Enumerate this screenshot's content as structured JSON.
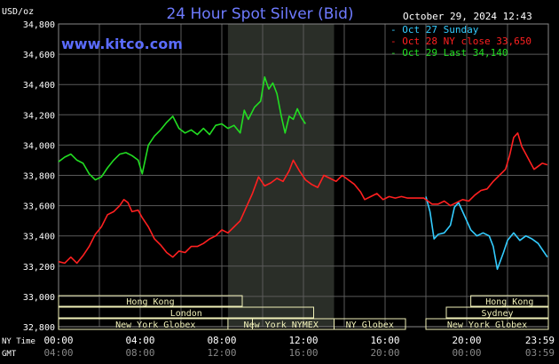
{
  "chart_data": {
    "type": "line",
    "title": "24 Hour Spot Silver (Bid)",
    "unit_label": "USD/oz",
    "timestamp": "October 29, 2024 12:43",
    "watermark": "www.kitco.com",
    "ylim": [
      32800,
      34800
    ],
    "y_ticks": [
      "34,800",
      "34,600",
      "34,400",
      "34,200",
      "34,000",
      "33,800",
      "33,600",
      "33,400",
      "33,200",
      "33,000",
      "32,800"
    ],
    "y_tick_values": [
      34800,
      34600,
      34400,
      34200,
      34000,
      33800,
      33600,
      33400,
      33200,
      33000,
      32800
    ],
    "x_range_hours": [
      0,
      24
    ],
    "x_ticks_ny": [
      "00:00",
      "04:00",
      "08:00",
      "12:00",
      "16:00",
      "20:00",
      "23:59"
    ],
    "x_ticks_gmt": [
      "04:00",
      "08:00",
      "12:00",
      "16:00",
      "20:00",
      "00:00",
      "03:59"
    ],
    "x_tick_hours": [
      0,
      4,
      8,
      12,
      16,
      20,
      24
    ],
    "x_row_label_ny": "NY Time",
    "x_row_label_gmt": "GMT",
    "legend_position": "top-right",
    "grid": true,
    "series": [
      {
        "name": "Oct 27 Sunday",
        "color": "#33ccff",
        "points": [
          [
            18.0,
            33660
          ],
          [
            18.2,
            33560
          ],
          [
            18.4,
            33380
          ],
          [
            18.6,
            33410
          ],
          [
            18.9,
            33420
          ],
          [
            19.2,
            33470
          ],
          [
            19.4,
            33590
          ],
          [
            19.6,
            33620
          ],
          [
            19.9,
            33530
          ],
          [
            20.2,
            33440
          ],
          [
            20.5,
            33400
          ],
          [
            20.8,
            33420
          ],
          [
            21.1,
            33400
          ],
          [
            21.3,
            33330
          ],
          [
            21.5,
            33180
          ],
          [
            21.8,
            33290
          ],
          [
            22.0,
            33370
          ],
          [
            22.3,
            33420
          ],
          [
            22.6,
            33370
          ],
          [
            22.9,
            33400
          ],
          [
            23.2,
            33380
          ],
          [
            23.5,
            33350
          ],
          [
            23.7,
            33310
          ],
          [
            23.95,
            33260
          ]
        ]
      },
      {
        "name": "Oct 28 NY close 33,650",
        "color": "#ff2020",
        "points": [
          [
            0.0,
            33230
          ],
          [
            0.3,
            33220
          ],
          [
            0.6,
            33260
          ],
          [
            0.9,
            33220
          ],
          [
            1.2,
            33270
          ],
          [
            1.5,
            33330
          ],
          [
            1.8,
            33410
          ],
          [
            2.1,
            33460
          ],
          [
            2.4,
            33540
          ],
          [
            2.7,
            33560
          ],
          [
            3.0,
            33600
          ],
          [
            3.2,
            33640
          ],
          [
            3.4,
            33620
          ],
          [
            3.6,
            33560
          ],
          [
            3.9,
            33570
          ],
          [
            4.1,
            33520
          ],
          [
            4.4,
            33460
          ],
          [
            4.7,
            33380
          ],
          [
            5.0,
            33340
          ],
          [
            5.3,
            33290
          ],
          [
            5.6,
            33260
          ],
          [
            5.9,
            33300
          ],
          [
            6.2,
            33290
          ],
          [
            6.5,
            33330
          ],
          [
            6.8,
            33330
          ],
          [
            7.1,
            33350
          ],
          [
            7.4,
            33380
          ],
          [
            7.7,
            33400
          ],
          [
            8.0,
            33440
          ],
          [
            8.3,
            33420
          ],
          [
            8.6,
            33460
          ],
          [
            8.9,
            33500
          ],
          [
            9.2,
            33590
          ],
          [
            9.5,
            33680
          ],
          [
            9.8,
            33790
          ],
          [
            10.1,
            33730
          ],
          [
            10.4,
            33750
          ],
          [
            10.7,
            33780
          ],
          [
            11.0,
            33760
          ],
          [
            11.3,
            33830
          ],
          [
            11.5,
            33900
          ],
          [
            11.8,
            33830
          ],
          [
            12.1,
            33770
          ],
          [
            12.4,
            33740
          ],
          [
            12.7,
            33720
          ],
          [
            13.0,
            33800
          ],
          [
            13.3,
            33780
          ],
          [
            13.6,
            33760
          ],
          [
            13.9,
            33800
          ],
          [
            14.2,
            33770
          ],
          [
            14.5,
            33740
          ],
          [
            14.8,
            33690
          ],
          [
            15.0,
            33640
          ],
          [
            15.3,
            33660
          ],
          [
            15.6,
            33680
          ],
          [
            15.9,
            33640
          ],
          [
            16.2,
            33660
          ],
          [
            16.5,
            33650
          ],
          [
            16.8,
            33660
          ],
          [
            17.1,
            33650
          ],
          [
            17.5,
            33650
          ],
          [
            17.9,
            33650
          ],
          [
            18.3,
            33610
          ],
          [
            18.6,
            33610
          ],
          [
            18.9,
            33630
          ],
          [
            19.2,
            33600
          ],
          [
            19.5,
            33620
          ],
          [
            19.8,
            33640
          ],
          [
            20.1,
            33630
          ],
          [
            20.4,
            33670
          ],
          [
            20.7,
            33700
          ],
          [
            21.0,
            33710
          ],
          [
            21.3,
            33760
          ],
          [
            21.6,
            33800
          ],
          [
            21.9,
            33840
          ],
          [
            22.1,
            33930
          ],
          [
            22.3,
            34050
          ],
          [
            22.5,
            34080
          ],
          [
            22.7,
            33990
          ],
          [
            22.9,
            33940
          ],
          [
            23.1,
            33890
          ],
          [
            23.3,
            33840
          ],
          [
            23.5,
            33860
          ],
          [
            23.7,
            33880
          ],
          [
            23.95,
            33870
          ]
        ]
      },
      {
        "name": "Oct 29 Last 34,140",
        "color": "#22dd22",
        "points": [
          [
            0.0,
            33890
          ],
          [
            0.3,
            33920
          ],
          [
            0.6,
            33940
          ],
          [
            0.9,
            33900
          ],
          [
            1.2,
            33880
          ],
          [
            1.5,
            33810
          ],
          [
            1.8,
            33770
          ],
          [
            2.1,
            33790
          ],
          [
            2.4,
            33850
          ],
          [
            2.7,
            33900
          ],
          [
            3.0,
            33940
          ],
          [
            3.3,
            33950
          ],
          [
            3.6,
            33930
          ],
          [
            3.9,
            33900
          ],
          [
            4.1,
            33810
          ],
          [
            4.4,
            34000
          ],
          [
            4.7,
            34060
          ],
          [
            5.0,
            34100
          ],
          [
            5.3,
            34150
          ],
          [
            5.6,
            34190
          ],
          [
            5.9,
            34110
          ],
          [
            6.2,
            34080
          ],
          [
            6.5,
            34100
          ],
          [
            6.8,
            34070
          ],
          [
            7.1,
            34110
          ],
          [
            7.4,
            34070
          ],
          [
            7.7,
            34130
          ],
          [
            8.0,
            34140
          ],
          [
            8.3,
            34110
          ],
          [
            8.6,
            34130
          ],
          [
            8.9,
            34080
          ],
          [
            9.1,
            34230
          ],
          [
            9.3,
            34170
          ],
          [
            9.6,
            34250
          ],
          [
            9.9,
            34290
          ],
          [
            10.1,
            34450
          ],
          [
            10.3,
            34370
          ],
          [
            10.5,
            34410
          ],
          [
            10.7,
            34340
          ],
          [
            10.9,
            34200
          ],
          [
            11.1,
            34080
          ],
          [
            11.3,
            34190
          ],
          [
            11.5,
            34170
          ],
          [
            11.7,
            34240
          ],
          [
            11.9,
            34180
          ],
          [
            12.1,
            34140
          ]
        ]
      }
    ],
    "sessions": [
      {
        "name": "Hong Kong",
        "row": 0,
        "start_hour": 0,
        "end_hour": 9.0
      },
      {
        "name": "London",
        "row": 1,
        "start_hour": 0,
        "end_hour": 12.5
      },
      {
        "name": "New York Globex",
        "row": 2,
        "start_hour": 0,
        "end_hour": 9.5
      },
      {
        "name": "New York NYMEX",
        "row": 2,
        "start_hour": 8.3,
        "end_hour": 13.5
      },
      {
        "name": "NY Globex",
        "row": 2,
        "start_hour": 13.5,
        "end_hour": 17.0
      },
      {
        "name": "Hong Kong",
        "row": 0,
        "start_hour": 20.2,
        "end_hour": 24
      },
      {
        "name": "Sydney",
        "row": 1,
        "start_hour": 19.0,
        "end_hour": 24
      },
      {
        "name": "New York Globex",
        "row": 2,
        "start_hour": 18.0,
        "end_hour": 24
      }
    ],
    "highlight_band_hours": [
      8.3,
      13.5
    ],
    "colors": {
      "background": "#000000",
      "grid": "#5a5a5a",
      "highlight_band": "#2a2e28",
      "title": "#6e7bff",
      "watermark": "#5b6cff",
      "axis_text": "#ffffff",
      "session_box": "#f0f0b8",
      "session_text": "#000000"
    }
  }
}
